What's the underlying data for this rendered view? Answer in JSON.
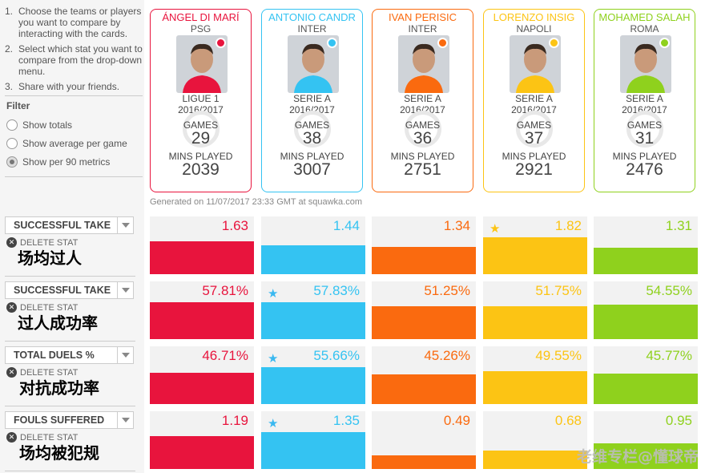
{
  "instructions": [
    {
      "num": "1.",
      "text": "Choose the teams or players you want to compare by interacting with the cards."
    },
    {
      "num": "2.",
      "text": "Select which stat you want to compare from the drop-down menu."
    },
    {
      "num": "3.",
      "text": "Share with your friends."
    }
  ],
  "filter": {
    "title": "Filter",
    "options": [
      {
        "label": "Show totals",
        "checked": false
      },
      {
        "label": "Show average per game",
        "checked": false
      },
      {
        "label": "Show per 90 metrics",
        "checked": true
      }
    ]
  },
  "players": [
    {
      "name": "ÁNGEL DI MARÍ",
      "club": "PSG",
      "league": "LIGUE 1",
      "season": "2016/2017",
      "games_label": "GAMES",
      "games": "29",
      "mins_label": "MINS PLAYED",
      "mins": "2039",
      "color": "#e8143d"
    },
    {
      "name": "ANTONIO CANDR",
      "club": "INTER",
      "league": "SERIE A",
      "season": "2016/2017",
      "games_label": "GAMES",
      "games": "38",
      "mins_label": "MINS PLAYED",
      "mins": "3007",
      "color": "#34c3f2"
    },
    {
      "name": "IVAN PERISIC",
      "club": "INTER",
      "league": "SERIE A",
      "season": "2016/2017",
      "games_label": "GAMES",
      "games": "36",
      "mins_label": "MINS PLAYED",
      "mins": "2751",
      "color": "#fa6a0f"
    },
    {
      "name": "LORENZO INSIG",
      "club": "NAPOLI",
      "league": "SERIE A",
      "season": "2016/2017",
      "games_label": "GAMES",
      "games": "37",
      "mins_label": "MINS PLAYED",
      "mins": "2921",
      "color": "#fcc414"
    },
    {
      "name": "MOHAMED SALAH",
      "club": "ROMA",
      "league": "SERIE A",
      "season": "2016/2017",
      "games_label": "GAMES",
      "games": "31",
      "mins_label": "MINS PLAYED",
      "mins": "2476",
      "color": "#8fd11d"
    }
  ],
  "generated_text": "Generated on 11/07/2017 23:33 GMT at squawka.com",
  "delete_label": "DELETE STAT",
  "stats": [
    {
      "select_label": "SUCCESSFUL TAKE",
      "cn_label": "场均过人",
      "values": [
        "1.63",
        "1.44",
        "1.34",
        "1.82",
        "1.31"
      ],
      "numeric": [
        1.63,
        1.44,
        1.34,
        1.82,
        1.31
      ],
      "star_index": 3
    },
    {
      "select_label": "SUCCESSFUL TAKE",
      "cn_label": "过人成功率",
      "values": [
        "57.81%",
        "57.83%",
        "51.25%",
        "51.75%",
        "54.55%"
      ],
      "numeric": [
        57.81,
        57.83,
        51.25,
        51.75,
        54.55
      ],
      "star_index": 1
    },
    {
      "select_label": "TOTAL DUELS %",
      "cn_label": "对抗成功率",
      "values": [
        "46.71%",
        "55.66%",
        "45.26%",
        "49.55%",
        "45.77%"
      ],
      "numeric": [
        46.71,
        55.66,
        45.26,
        49.55,
        45.77
      ],
      "star_index": 1
    },
    {
      "select_label": "FOULS SUFFERED",
      "cn_label": "场均被犯规",
      "values": [
        "1.19",
        "1.35",
        "0.49",
        "0.68",
        "0.95"
      ],
      "numeric": [
        1.19,
        1.35,
        0.49,
        0.68,
        0.95
      ],
      "star_index": 1
    }
  ],
  "star_color": "#3ab8f0",
  "watermark": "老维专栏@懂球帝"
}
